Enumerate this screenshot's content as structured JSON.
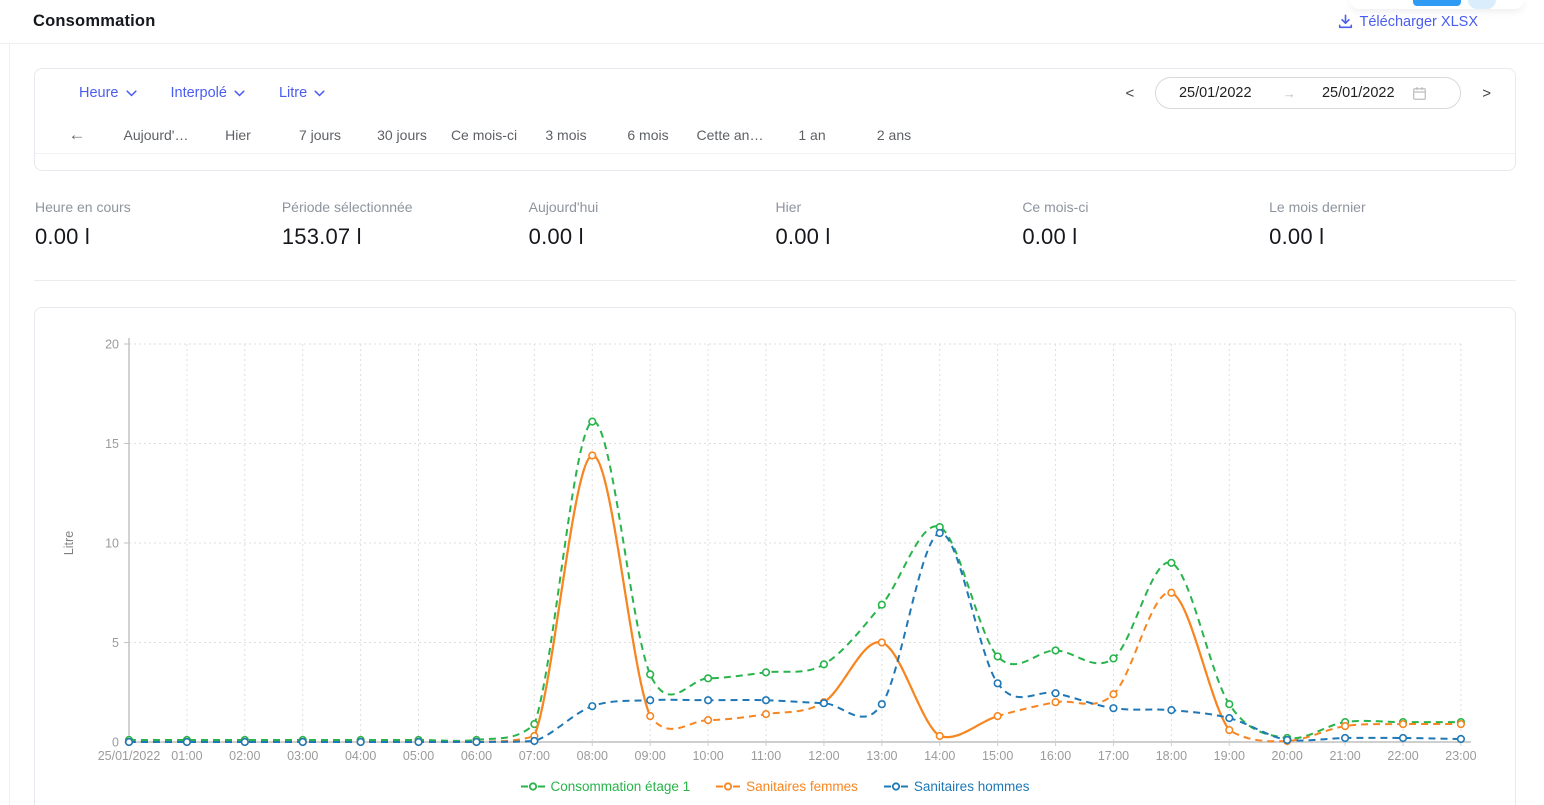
{
  "header": {
    "title": "Consommation",
    "download_label": "Télécharger XLSX"
  },
  "filters": {
    "dropdowns": [
      {
        "label": "Heure"
      },
      {
        "label": "Interpolé"
      },
      {
        "label": "Litre"
      }
    ],
    "date_range": {
      "prev": "<",
      "start": "25/01/2022",
      "arrow": "→",
      "end": "25/01/2022",
      "next": ">"
    },
    "back_arrow": "←",
    "tabs": [
      "Aujourd'…",
      "Hier",
      "7 jours",
      "30 jours",
      "Ce mois-ci",
      "3 mois",
      "6 mois",
      "Cette an…",
      "1 an",
      "2 ans"
    ]
  },
  "stats": [
    {
      "label": "Heure en cours",
      "value": "0.00 l"
    },
    {
      "label": "Période sélectionnée",
      "value": "153.07 l"
    },
    {
      "label": "Aujourd'hui",
      "value": "0.00 l"
    },
    {
      "label": "Hier",
      "value": "0.00 l"
    },
    {
      "label": "Ce mois-ci",
      "value": "0.00 l"
    },
    {
      "label": "Le mois dernier",
      "value": "0.00 l"
    }
  ],
  "colors": {
    "accent": "#4a5df0",
    "muted_text": "#8e949e",
    "axis_text": "#9b9b9b"
  },
  "chart_data": {
    "type": "line",
    "title": "",
    "xlabel": "",
    "ylabel": "Litre",
    "ylim": [
      0,
      20
    ],
    "yticks": [
      0,
      5,
      10,
      15,
      20
    ],
    "grid": true,
    "legend_position": "bottom",
    "x_labels": [
      "25/01/2022",
      "01:00",
      "02:00",
      "03:00",
      "04:00",
      "05:00",
      "06:00",
      "07:00",
      "08:00",
      "09:00",
      "10:00",
      "11:00",
      "12:00",
      "13:00",
      "14:00",
      "15:00",
      "16:00",
      "17:00",
      "18:00",
      "19:00",
      "20:00",
      "21:00",
      "22:00",
      "23:00"
    ],
    "series": [
      {
        "name": "Consommation étage 1",
        "color": "#28b44b",
        "style": "dashed",
        "values": [
          0.1,
          0.1,
          0.1,
          0.1,
          0.1,
          0.1,
          0.1,
          0.9,
          16.1,
          3.4,
          3.2,
          3.5,
          3.9,
          6.9,
          10.8,
          4.3,
          4.6,
          4.2,
          9.0,
          1.9,
          0.2,
          1.0,
          1.0,
          1.0
        ]
      },
      {
        "name": "Sanitaires femmes",
        "color": "#f78621",
        "style": "dashed",
        "solid_segments": [
          [
            7,
            9
          ],
          [
            12,
            15
          ],
          [
            18,
            19
          ]
        ],
        "values": [
          0,
          0,
          0,
          0,
          0,
          0,
          0,
          0.3,
          14.4,
          1.3,
          1.1,
          1.4,
          2.0,
          5.0,
          0.3,
          1.3,
          2.0,
          2.4,
          7.5,
          0.6,
          0.05,
          0.8,
          0.9,
          0.9
        ]
      },
      {
        "name": "Sanitaires hommes",
        "color": "#1f78b5",
        "style": "dashed",
        "values": [
          0,
          0,
          0,
          0,
          0,
          0,
          0,
          0.05,
          1.8,
          2.1,
          2.1,
          2.1,
          1.95,
          1.9,
          10.5,
          2.95,
          2.45,
          1.7,
          1.6,
          1.2,
          0.1,
          0.2,
          0.2,
          0.15
        ]
      }
    ]
  }
}
